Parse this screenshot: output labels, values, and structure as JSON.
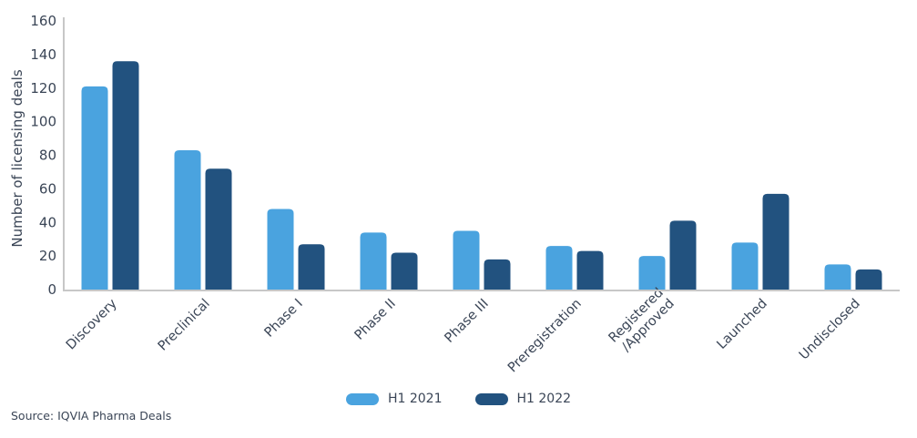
{
  "chart_data": {
    "type": "bar",
    "ylabel": "Number of licensing deals",
    "xlabel": "",
    "ylim": [
      0,
      160
    ],
    "yticks": [
      0,
      20,
      40,
      60,
      80,
      100,
      120,
      140,
      160
    ],
    "categories": [
      "Discovery",
      "Preclinical",
      "Phase I",
      "Phase II",
      "Phase III",
      "Preregistration",
      "Registered\n/Approved",
      "Launched",
      "Undisclosed"
    ],
    "series": [
      {
        "name": "H1 2021",
        "color": "#4aa3df",
        "values": [
          121,
          83,
          48,
          34,
          35,
          26,
          20,
          28,
          15
        ]
      },
      {
        "name": "H1 2022",
        "color": "#22527f",
        "values": [
          136,
          72,
          27,
          22,
          18,
          23,
          41,
          57,
          12
        ]
      }
    ],
    "grid": false,
    "legend_position": "bottom"
  },
  "source": "Source: IQVIA Pharma Deals"
}
